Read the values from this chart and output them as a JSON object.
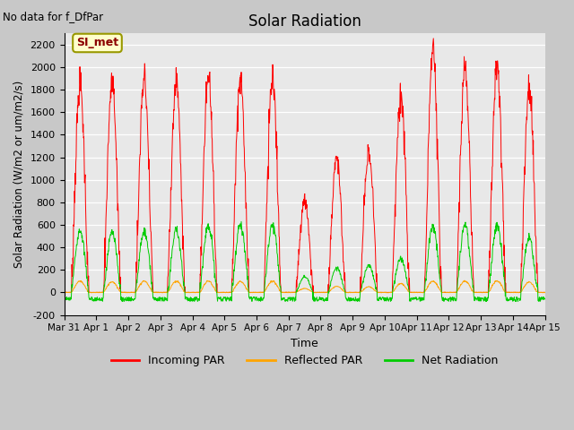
{
  "title": "Solar Radiation",
  "top_left_note": "No data for f_DfPar",
  "legend_label": "SI_met",
  "xlabel": "Time",
  "ylabel": "Solar Radiation (W/m2 or um/m2/s)",
  "ylim": [
    -200,
    2300
  ],
  "yticks": [
    -200,
    0,
    200,
    400,
    600,
    800,
    1000,
    1200,
    1400,
    1600,
    1800,
    2000,
    2200
  ],
  "background_color": "#e8e8e8",
  "line_color_incoming": "#ff0000",
  "line_color_reflected": "#ffa500",
  "line_color_net": "#00cc00",
  "legend_incoming": "Incoming PAR",
  "legend_reflected": "Reflected PAR",
  "legend_net": "Net Radiation",
  "xtick_labels": [
    "Mar 31",
    "Apr 1",
    "Apr 2",
    "Apr 3",
    "Apr 4",
    "Apr 5",
    "Apr 6",
    "Apr 7",
    "Apr 8",
    "Apr 9",
    "Apr 10",
    "Apr 11",
    "Apr 12",
    "Apr 13",
    "Apr 14",
    "Apr 15"
  ],
  "num_days": 15,
  "peaks_incoming": [
    1840,
    1870,
    1900,
    1900,
    1930,
    1870,
    1910,
    830,
    1200,
    1240,
    1750,
    2150,
    2000,
    2000,
    1800
  ],
  "peaks_net": [
    560,
    530,
    545,
    545,
    600,
    600,
    600,
    140,
    220,
    240,
    300,
    590,
    590,
    590,
    480
  ],
  "peaks_reflected": [
    100,
    95,
    100,
    100,
    100,
    95,
    100,
    35,
    55,
    50,
    80,
    100,
    100,
    100,
    90
  ]
}
